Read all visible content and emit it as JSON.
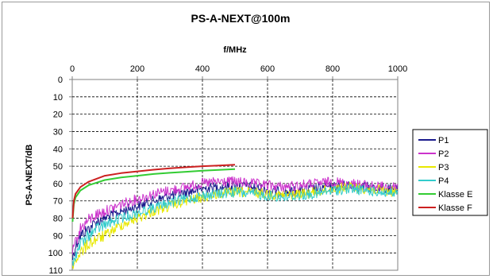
{
  "chart_data": {
    "type": "line",
    "title": "PS-A-NEXT@100m",
    "xlabel": "f/MHz",
    "ylabel": "PS-A-NEXT/dB",
    "xlim": [
      0,
      1000
    ],
    "ylim": [
      0,
      110
    ],
    "y_inverted": true,
    "x_axis_position": "top",
    "x_ticks": [
      0,
      200,
      400,
      600,
      800,
      1000
    ],
    "y_ticks": [
      0,
      10,
      20,
      30,
      40,
      50,
      60,
      70,
      80,
      90,
      100,
      110
    ],
    "grid": "dashed",
    "legend_position": "right",
    "series": [
      {
        "name": "P1",
        "color": "#1a1a8c",
        "noisy": true,
        "x": [
          1,
          10,
          25,
          50,
          75,
          100,
          150,
          200,
          250,
          300,
          350,
          400,
          450,
          500,
          550,
          600,
          650,
          700,
          750,
          800,
          850,
          900,
          950,
          1000
        ],
        "y": [
          103,
          96,
          90,
          86,
          82,
          80,
          76,
          73,
          70,
          67,
          65,
          63,
          62,
          61,
          62,
          64,
          65,
          64,
          63,
          62,
          61,
          62,
          63,
          64
        ]
      },
      {
        "name": "P2",
        "color": "#cc33cc",
        "noisy": true,
        "x": [
          1,
          10,
          25,
          50,
          75,
          100,
          150,
          200,
          250,
          300,
          350,
          400,
          450,
          500,
          550,
          600,
          650,
          700,
          750,
          800,
          850,
          900,
          950,
          1000
        ],
        "y": [
          100,
          94,
          86,
          81,
          78,
          76,
          72,
          69,
          66,
          64,
          62,
          60,
          59,
          59,
          60,
          61,
          62,
          61,
          60,
          59,
          60,
          61,
          62,
          62
        ]
      },
      {
        "name": "P3",
        "color": "#e8e800",
        "noisy": true,
        "x": [
          1,
          10,
          25,
          50,
          75,
          100,
          150,
          200,
          250,
          300,
          350,
          400,
          450,
          500,
          550,
          600,
          650,
          700,
          750,
          800,
          850,
          900,
          950,
          1000
        ],
        "y": [
          108,
          104,
          100,
          95,
          92,
          90,
          84,
          80,
          76,
          73,
          70,
          68,
          66,
          65,
          65,
          66,
          67,
          66,
          65,
          63,
          62,
          63,
          64,
          65
        ]
      },
      {
        "name": "P4",
        "color": "#33cccc",
        "noisy": true,
        "x": [
          1,
          10,
          25,
          50,
          75,
          100,
          150,
          200,
          250,
          300,
          350,
          400,
          450,
          500,
          550,
          600,
          650,
          700,
          750,
          800,
          850,
          900,
          950,
          1000
        ],
        "y": [
          107,
          101,
          95,
          90,
          86,
          84,
          80,
          77,
          74,
          71,
          69,
          67,
          66,
          65,
          66,
          67,
          68,
          67,
          66,
          64,
          63,
          64,
          65,
          66
        ]
      },
      {
        "name": "Klasse E",
        "color": "#33cc33",
        "noisy": false,
        "x": [
          1,
          5,
          10,
          25,
          50,
          100,
          150,
          200,
          250,
          300,
          350,
          400,
          450,
          500
        ],
        "y": [
          82,
          72,
          68,
          64,
          61,
          58,
          56.5,
          55.5,
          54.5,
          53.8,
          53.2,
          52.6,
          52.1,
          51.7
        ]
      },
      {
        "name": "Klasse F",
        "color": "#cc2020",
        "noisy": false,
        "x": [
          1,
          5,
          10,
          25,
          50,
          100,
          150,
          200,
          250,
          300,
          350,
          400,
          450,
          500
        ],
        "y": [
          80,
          70,
          66,
          62,
          59,
          55.5,
          54,
          53,
          52,
          51.2,
          50.6,
          50,
          49.6,
          49.2
        ]
      }
    ]
  }
}
